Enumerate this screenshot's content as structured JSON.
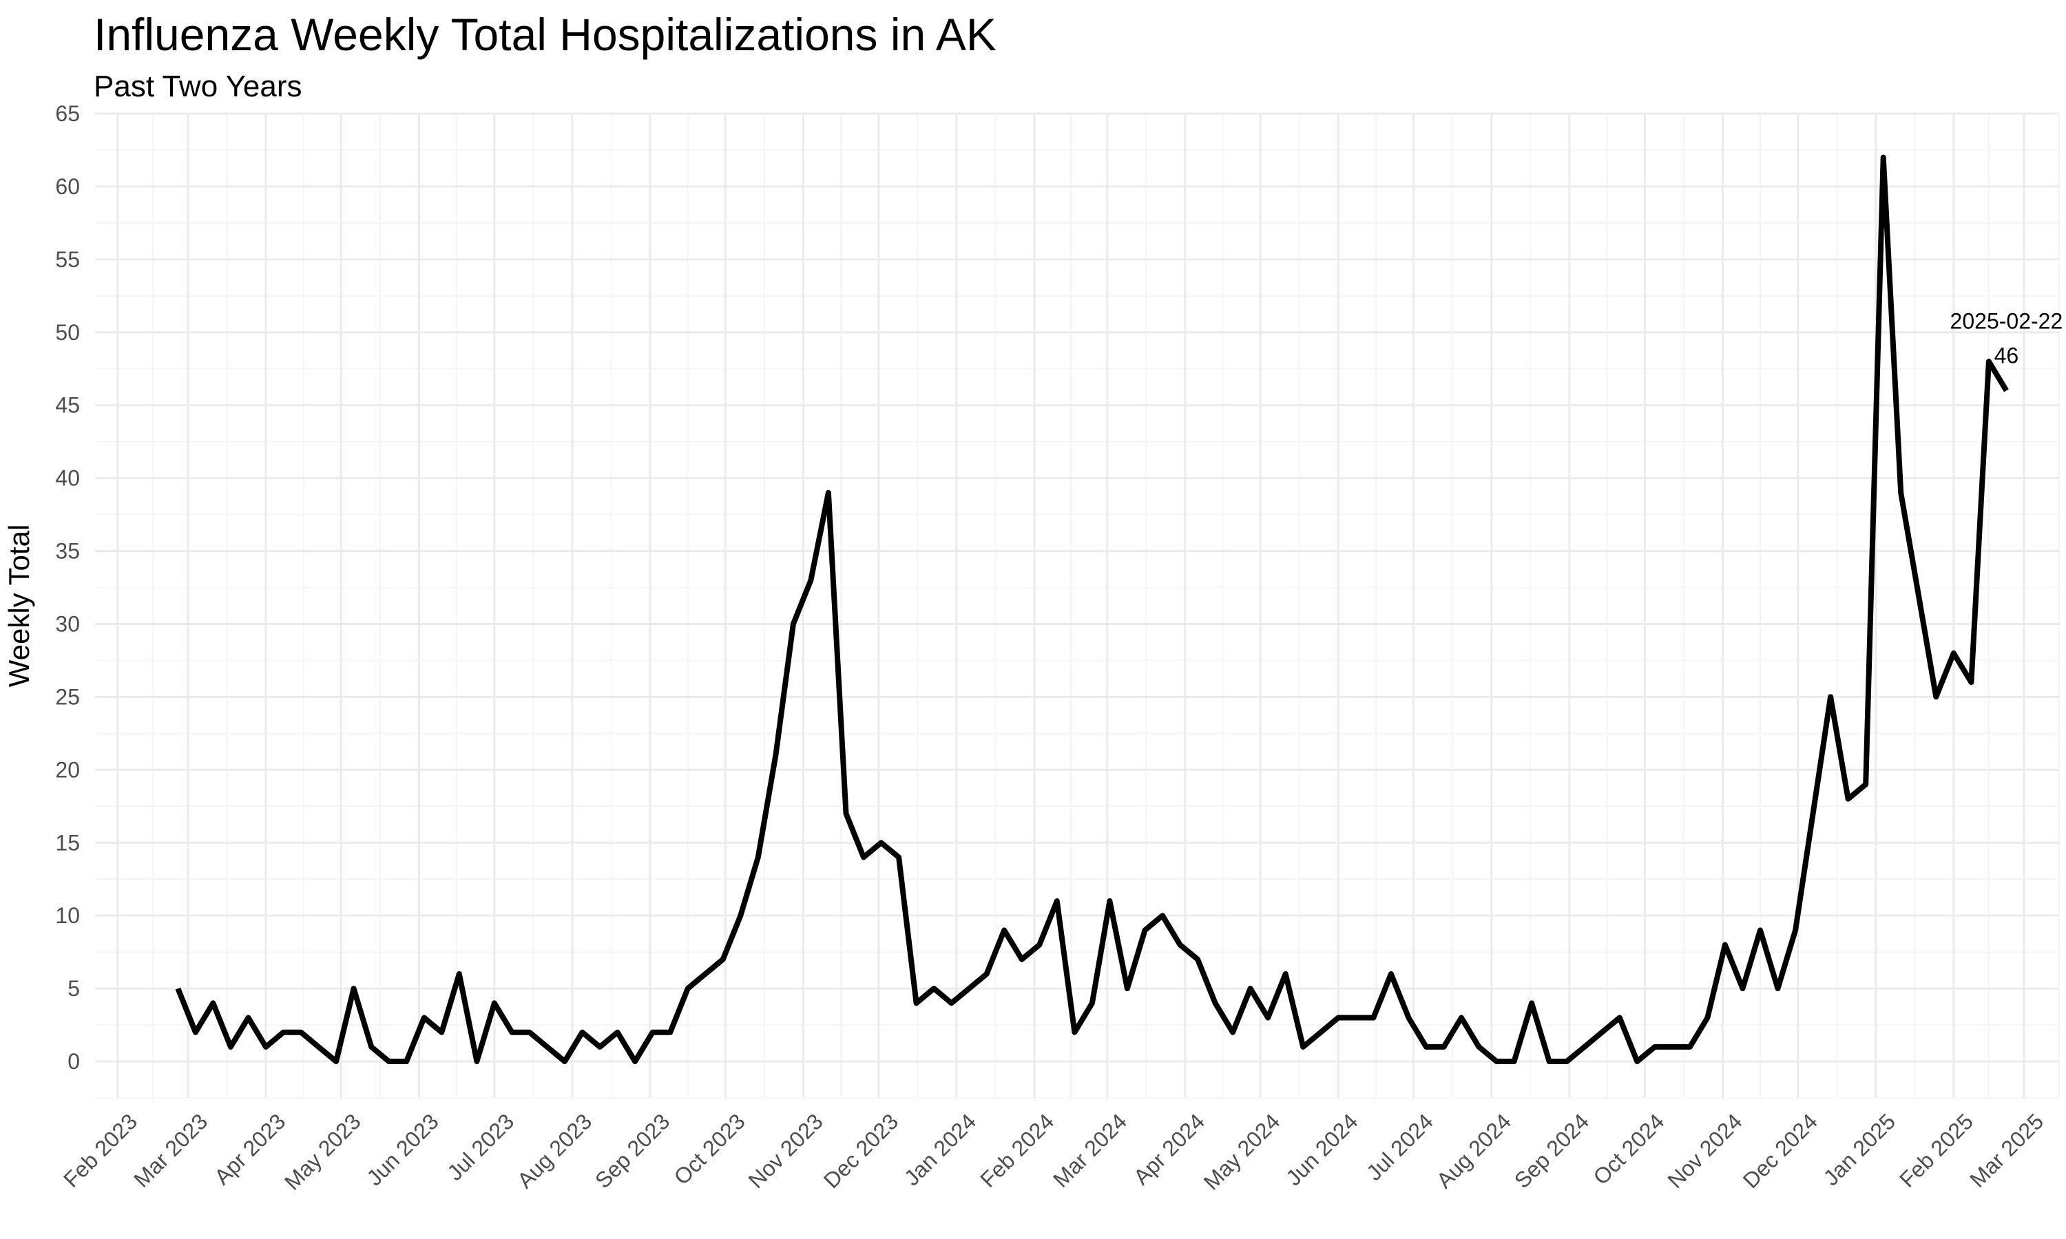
{
  "chart_data": {
    "type": "line",
    "title": "Influenza Weekly Total Hospitalizations in AK",
    "subtitle": "Past Two Years",
    "xlabel": "",
    "ylabel": "Weekly Total",
    "ylim": [
      -2.5,
      65
    ],
    "xlim": [
      "2023-01-23",
      "2025-03-15"
    ],
    "y_ticks": [
      "0",
      "5",
      "10",
      "15",
      "20",
      "25",
      "30",
      "35",
      "40",
      "45",
      "50",
      "55",
      "60",
      "65"
    ],
    "x_ticks": [
      {
        "date": "2023-02-01",
        "label": "Feb 2023"
      },
      {
        "date": "2023-03-01",
        "label": "Mar 2023"
      },
      {
        "date": "2023-04-01",
        "label": "Apr 2023"
      },
      {
        "date": "2023-05-01",
        "label": "May 2023"
      },
      {
        "date": "2023-06-01",
        "label": "Jun 2023"
      },
      {
        "date": "2023-07-01",
        "label": "Jul 2023"
      },
      {
        "date": "2023-08-01",
        "label": "Aug 2023"
      },
      {
        "date": "2023-09-01",
        "label": "Sep 2023"
      },
      {
        "date": "2023-10-01",
        "label": "Oct 2023"
      },
      {
        "date": "2023-11-01",
        "label": "Nov 2023"
      },
      {
        "date": "2023-12-01",
        "label": "Dec 2023"
      },
      {
        "date": "2024-01-01",
        "label": "Jan 2024"
      },
      {
        "date": "2024-02-01",
        "label": "Feb 2024"
      },
      {
        "date": "2024-03-01",
        "label": "Mar 2024"
      },
      {
        "date": "2024-04-01",
        "label": "Apr 2024"
      },
      {
        "date": "2024-05-01",
        "label": "May 2024"
      },
      {
        "date": "2024-06-01",
        "label": "Jun 2024"
      },
      {
        "date": "2024-07-01",
        "label": "Jul 2024"
      },
      {
        "date": "2024-08-01",
        "label": "Aug 2024"
      },
      {
        "date": "2024-09-01",
        "label": "Sep 2024"
      },
      {
        "date": "2024-10-01",
        "label": "Oct 2024"
      },
      {
        "date": "2024-11-01",
        "label": "Nov 2024"
      },
      {
        "date": "2024-12-01",
        "label": "Dec 2024"
      },
      {
        "date": "2025-01-01",
        "label": "Jan 2025"
      },
      {
        "date": "2025-02-01",
        "label": "Feb 2025"
      },
      {
        "date": "2025-03-01",
        "label": "Mar 2025"
      }
    ],
    "grid": true,
    "series": [
      {
        "name": "Weekly Total",
        "color": "#000000",
        "start_date": "2023-02-25",
        "interval_days": 7,
        "values": [
          5,
          2,
          4,
          1,
          3,
          1,
          2,
          2,
          1,
          0,
          5,
          1,
          0,
          0,
          3,
          2,
          6,
          0,
          4,
          2,
          2,
          1,
          0,
          2,
          1,
          2,
          0,
          2,
          2,
          5,
          6,
          7,
          10,
          14,
          21,
          30,
          33,
          39,
          17,
          14,
          15,
          14,
          4,
          5,
          4,
          5,
          6,
          9,
          7,
          8,
          11,
          2,
          4,
          11,
          5,
          9,
          10,
          8,
          7,
          4,
          2,
          5,
          3,
          6,
          1,
          2,
          3,
          3,
          3,
          6,
          3,
          1,
          1,
          3,
          1,
          0,
          0,
          4,
          0,
          0,
          1,
          2,
          3,
          0,
          1,
          1,
          1,
          3,
          8,
          5,
          9,
          5,
          9,
          17,
          25,
          18,
          19,
          62,
          39,
          32,
          25,
          28,
          26,
          48,
          46
        ]
      }
    ],
    "annotations": [
      {
        "date": "2025-02-22",
        "date_label": "2025-02-22",
        "value_label": "46",
        "value": 46
      }
    ]
  }
}
